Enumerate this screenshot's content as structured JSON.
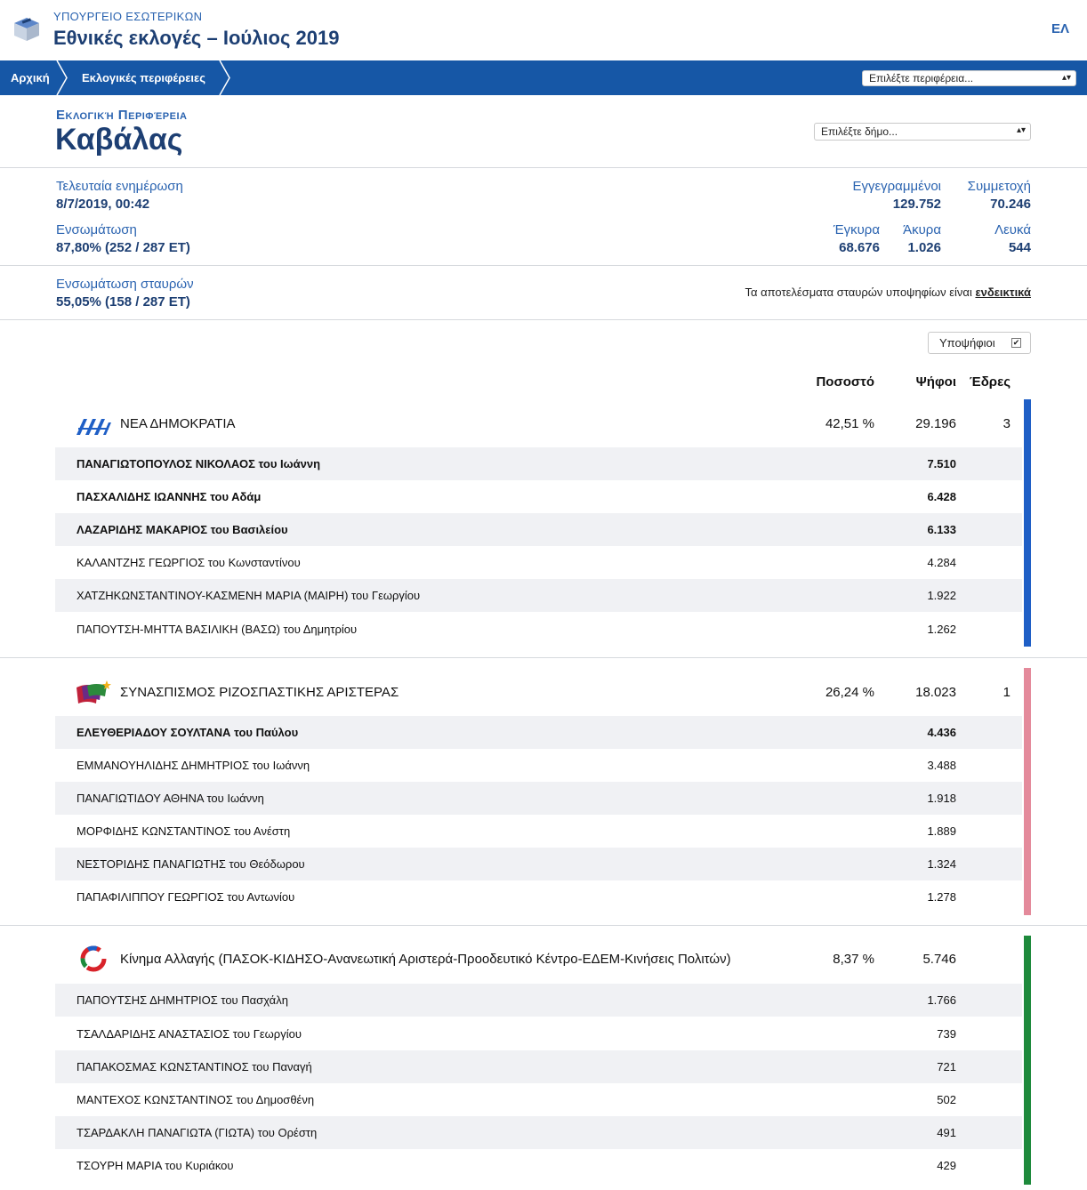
{
  "header": {
    "ministry": "ΥΠΟΥΡΓΕΙΟ ΕΣΩΤΕΡΙΚΩΝ",
    "title": "Εθνικές εκλογές – Ιούλιος 2019",
    "lang": "ΕΛ"
  },
  "nav": {
    "crumbs": [
      "Αρχική",
      "Εκλογικές περιφέρειες"
    ],
    "region_select": "Επιλέξτε περιφέρεια..."
  },
  "region": {
    "label": "Εκλογική Περιφέρεια",
    "name": "Καβάλας",
    "muni_select": "Επιλέξτε δήμο..."
  },
  "stats": {
    "updated_label": "Τελευταία ενημέρωση",
    "updated_value": "8/7/2019, 00:42",
    "integration_label": "Ενσωμάτωση",
    "integration_value": "87,80% (252 / 287 ΕΤ)",
    "registered_label": "Εγγεγραμμένοι",
    "registered_value": "129.752",
    "turnout_label": "Συμμετοχή",
    "turnout_value": "70.246",
    "valid_label": "Έγκυρα",
    "valid_value": "68.676",
    "invalid_label": "Άκυρα",
    "invalid_value": "1.026",
    "blank_label": "Λευκά",
    "blank_value": "544",
    "cross_label": "Ενσωμάτωση σταυρών",
    "cross_value": "55,05% (158 / 287 ΕΤ)",
    "note_text": "Τα αποτελέσματα σταυρών υποψηφίων είναι ",
    "note_link": "ενδεικτικά"
  },
  "table": {
    "toggle_label": "Υποψήφιοι",
    "toggle_checked": true,
    "col_pct": "Ποσοστό",
    "col_votes": "Ψήφοι",
    "col_seats": "Έδρες"
  },
  "colors": {
    "nd": "#1f5fc6",
    "syriza": "#e48a9b",
    "kinal": "#1e8a3c",
    "nav": "#1657a6"
  },
  "parties": [
    {
      "name": "ΝΕΑ ΔΗΜΟΚΡΑΤΙΑ",
      "pct": "42,51 %",
      "votes": "29.196",
      "seats": "3",
      "candidates": [
        {
          "name": "ΠΑΝΑΓΙΩΤΟΠΟΥΛΟΣ ΝΙΚΟΛΑΟΣ του Ιωάννη",
          "votes": "7.510"
        },
        {
          "name": "ΠΑΣΧΑΛΙΔΗΣ ΙΩΑΝΝΗΣ του Αδάμ",
          "votes": "6.428"
        },
        {
          "name": "ΛΑΖΑΡΙΔΗΣ ΜΑΚΑΡΙΟΣ του Βασιλείου",
          "votes": "6.133"
        },
        {
          "name": "ΚΑΛΑΝΤΖΗΣ ΓΕΩΡΓΙΟΣ του Κωνσταντίνου",
          "votes": "4.284"
        },
        {
          "name": "ΧΑΤΖΗΚΩΝΣΤΑΝΤΙΝΟΥ-ΚΑΣΜΕΝΗ ΜΑΡΙΑ (ΜΑΙΡΗ) του Γεωργίου",
          "votes": "1.922"
        },
        {
          "name": "ΠΑΠΟΥΤΣΗ-ΜΗΤΤΑ ΒΑΣΙΛΙΚΗ (ΒΑΣΩ) του Δημητρίου",
          "votes": "1.262"
        }
      ]
    },
    {
      "name": "ΣΥΝΑΣΠΙΣΜΟΣ ΡΙΖΟΣΠΑΣΤΙΚΗΣ ΑΡΙΣΤΕΡΑΣ",
      "pct": "26,24 %",
      "votes": "18.023",
      "seats": "1",
      "candidates": [
        {
          "name": "ΕΛΕΥΘΕΡΙΑΔΟΥ ΣΟΥΛΤΑΝΑ του Παύλου",
          "votes": "4.436"
        },
        {
          "name": "ΕΜΜΑΝΟΥΗΛΙΔΗΣ ΔΗΜΗΤΡΙΟΣ του Ιωάννη",
          "votes": "3.488"
        },
        {
          "name": "ΠΑΝΑΓΙΩΤΙΔΟΥ ΑΘΗΝΑ του Ιωάννη",
          "votes": "1.918"
        },
        {
          "name": "ΜΟΡΦΙΔΗΣ ΚΩΝΣΤΑΝΤΙΝΟΣ του Ανέστη",
          "votes": "1.889"
        },
        {
          "name": "ΝΕΣΤΟΡΙΔΗΣ ΠΑΝΑΓΙΩΤΗΣ του Θεόδωρου",
          "votes": "1.324"
        },
        {
          "name": "ΠΑΠΑΦΙΛΙΠΠΟΥ ΓΕΩΡΓΙΟΣ του Αντωνίου",
          "votes": "1.278"
        }
      ]
    },
    {
      "name": "Κίνημα Αλλαγής (ΠΑΣΟΚ-ΚΙΔΗΣΟ-Ανανεωτική Αριστερά-Προοδευτικό Κέντρο-ΕΔΕΜ-Κινήσεις Πολιτών)",
      "pct": "8,37 %",
      "votes": "5.746",
      "seats": "",
      "candidates": [
        {
          "name": "ΠΑΠΟΥΤΣΗΣ ΔΗΜΗΤΡΙΟΣ του Πασχάλη",
          "votes": "1.766"
        },
        {
          "name": "ΤΣΑΛΔΑΡΙΔΗΣ ΑΝΑΣΤΑΣΙΟΣ του Γεωργίου",
          "votes": "739"
        },
        {
          "name": "ΠΑΠΑΚΟΣΜΑΣ ΚΩΝΣΤΑΝΤΙΝΟΣ του Παναγή",
          "votes": "721"
        },
        {
          "name": "ΜΑΝΤΕΧΟΣ ΚΩΝΣΤΑΝΤΙΝΟΣ του Δημοσθένη",
          "votes": "502"
        },
        {
          "name": "ΤΣΑΡΔΑΚΛΗ ΠΑΝΑΓΙΩΤΑ (ΓΙΩΤΑ) του Ορέστη",
          "votes": "491"
        },
        {
          "name": "ΤΣΟΥΡΗ ΜΑΡΙΑ του Κυριάκου",
          "votes": "429"
        }
      ]
    }
  ]
}
